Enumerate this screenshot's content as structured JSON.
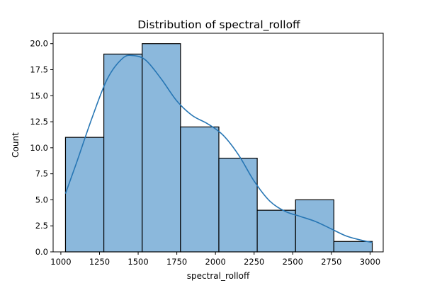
{
  "chart_data": {
    "type": "histogram",
    "title": "Distribution of spectral_rolloff",
    "xlabel": "spectral_rolloff",
    "ylabel": "Count",
    "xlim": [
      950,
      3085
    ],
    "ylim": [
      0,
      21
    ],
    "bins": [
      {
        "x0": 1030,
        "x1": 1278,
        "count": 11
      },
      {
        "x0": 1278,
        "x1": 1526,
        "count": 19
      },
      {
        "x0": 1526,
        "x1": 1774,
        "count": 20
      },
      {
        "x0": 1774,
        "x1": 2022,
        "count": 12
      },
      {
        "x0": 2022,
        "x1": 2270,
        "count": 9
      },
      {
        "x0": 2270,
        "x1": 2518,
        "count": 4
      },
      {
        "x0": 2518,
        "x1": 2766,
        "count": 5
      },
      {
        "x0": 2766,
        "x1": 3014,
        "count": 1
      }
    ],
    "kde": {
      "x": [
        1030,
        1100,
        1200,
        1300,
        1400,
        1470,
        1550,
        1650,
        1750,
        1850,
        1950,
        2050,
        2150,
        2250,
        2350,
        2450,
        2550,
        2650,
        2750,
        2850,
        2950,
        3014
      ],
      "y": [
        5.6,
        8.5,
        12.8,
        16.6,
        18.6,
        18.85,
        18.4,
        16.6,
        14.5,
        13.1,
        12.3,
        11.2,
        9.3,
        6.8,
        4.9,
        3.9,
        3.4,
        2.9,
        2.2,
        1.5,
        1.1,
        0.9
      ]
    },
    "xticks": [
      1000,
      1250,
      1500,
      1750,
      2000,
      2250,
      2500,
      2750,
      3000
    ],
    "yticks": [
      0.0,
      2.5,
      5.0,
      7.5,
      10.0,
      12.5,
      15.0,
      17.5,
      20.0
    ],
    "grid": false,
    "colors": {
      "bar_fill": "#8bb8dc",
      "bar_edge": "#000000",
      "kde_line": "#2776b4"
    }
  }
}
